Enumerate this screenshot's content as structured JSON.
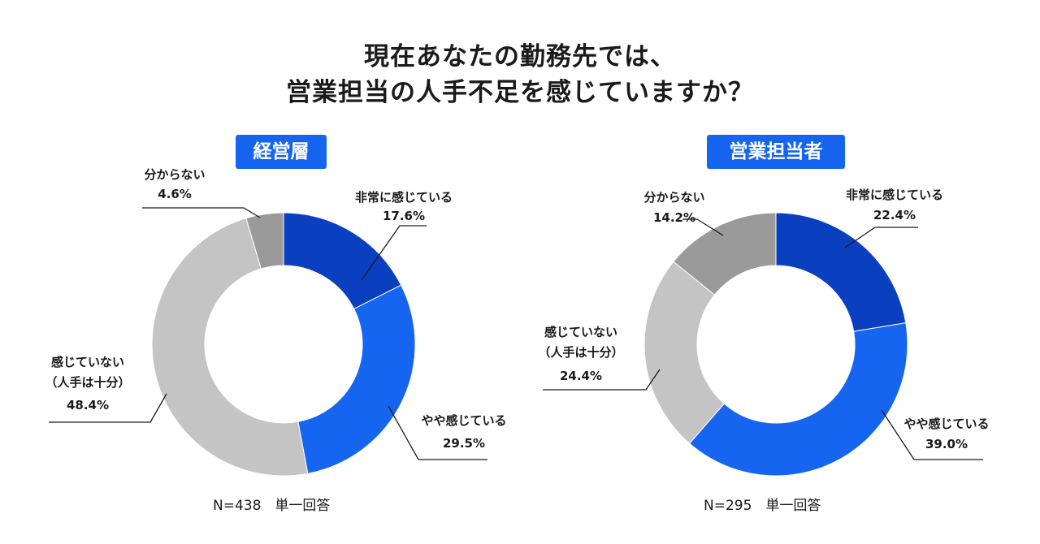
{
  "title_line1": "現在あなたの勤務先では、",
  "title_line2": "営業担当の人手不足を感じていますか？",
  "chart_data": [
    {
      "type": "pie",
      "title": "経営層",
      "categories": [
        "非常に感じている",
        "やや感じている",
        "感じていない（人手は十分）",
        "分からない"
      ],
      "values": [
        17.6,
        29.5,
        48.4,
        4.6
      ],
      "value_labels": [
        "17.6%",
        "29.5%",
        "48.4%",
        "4.6%"
      ],
      "colors": [
        "#0a3fbf",
        "#1565f0",
        "#c4c4c4",
        "#9a9a9a"
      ],
      "donut": true,
      "note": "N=438　単一回答"
    },
    {
      "type": "pie",
      "title": "営業担当者",
      "categories": [
        "非常に感じている",
        "やや感じている",
        "感じていない（人手は十分）",
        "分からない"
      ],
      "values": [
        22.4,
        39.0,
        24.4,
        14.2
      ],
      "value_labels": [
        "22.4%",
        "39.0%",
        "24.4%",
        "14.2%"
      ],
      "colors": [
        "#0a3fbf",
        "#1565f0",
        "#c4c4c4",
        "#9a9a9a"
      ],
      "donut": true,
      "note": "N=295　単一回答"
    }
  ],
  "slice_labels": {
    "very": "非常に感じている",
    "somewhat": "やや感じている",
    "not_line1": "感じていない",
    "not_line2": "（人手は十分）",
    "unknown": "分からない"
  }
}
